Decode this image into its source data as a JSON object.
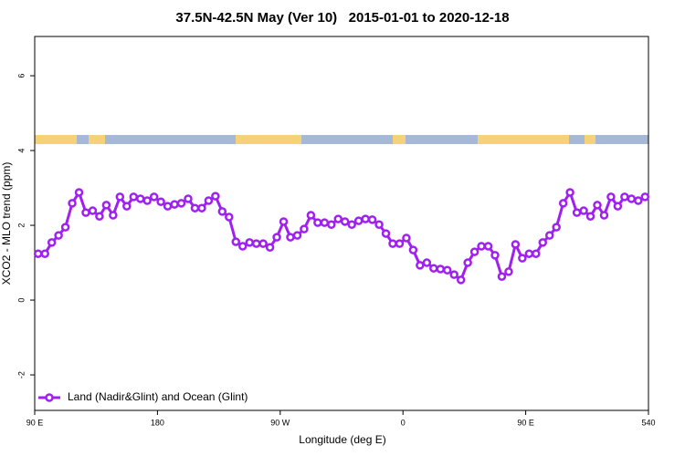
{
  "chart_data": {
    "type": "line",
    "title": "37.5N-42.5N May (Ver 10)   2015-01-01 to 2020-12-18",
    "x_label": "Longitude (deg E)",
    "y_label": "XCO2 - MLO trend (ppm)",
    "xlim": [
      90,
      540
    ],
    "ylim": [
      -2.95,
      7.05
    ],
    "xticks": [
      {
        "value": 90,
        "label": "90 E"
      },
      180,
      {
        "value": 270,
        "label": "90 W"
      },
      {
        "value": 360,
        "label": "0"
      },
      {
        "value": 450,
        "label": "90 E"
      },
      540
    ],
    "yticks": [
      -2,
      0,
      2,
      4,
      6
    ],
    "grid": false,
    "legend": "bottom-left",
    "x": [
      92.5,
      97.5,
      102.5,
      107.5,
      112.5,
      117.5,
      122.5,
      127.5,
      132.5,
      137.5,
      142.5,
      147.5,
      152.5,
      157.5,
      162.5,
      167.5,
      172.5,
      177.5,
      182.5,
      187.5,
      192.5,
      197.5,
      202.5,
      207.5,
      212.5,
      217.5,
      222.5,
      227.5,
      232.5,
      237.5,
      242.5,
      247.5,
      252.5,
      257.5,
      262.5,
      267.5,
      272.5,
      277.5,
      282.5,
      287.5,
      292.5,
      297.5,
      302.5,
      307.5,
      312.5,
      317.5,
      322.5,
      327.5,
      332.5,
      337.5,
      342.5,
      347.5,
      352.5,
      357.5,
      362.5,
      367.5,
      372.5,
      377.5,
      382.5,
      387.5,
      392.5,
      397.5,
      402.5,
      407.5,
      412.5,
      417.5,
      422.5,
      427.5,
      432.5,
      437.5,
      442.5,
      447.5,
      452.5,
      457.5,
      462.5,
      467.5,
      472.5,
      477.5,
      482.5,
      487.5,
      492.5,
      497.5,
      502.5,
      507.5,
      512.5,
      517.5,
      522.5,
      527.5,
      532.5,
      537.5
    ],
    "series": [
      {
        "name": "Land (Nadir&Glint) and Ocean (Glint)",
        "color": "#a020f0",
        "values": [
          1.24,
          1.24,
          1.54,
          1.73,
          1.95,
          2.59,
          2.88,
          2.34,
          2.39,
          2.24,
          2.54,
          2.27,
          2.76,
          2.51,
          2.76,
          2.71,
          2.66,
          2.76,
          2.63,
          2.51,
          2.56,
          2.59,
          2.71,
          2.46,
          2.46,
          2.66,
          2.78,
          2.37,
          2.22,
          1.56,
          1.44,
          1.54,
          1.51,
          1.51,
          1.41,
          1.68,
          2.1,
          1.68,
          1.73,
          1.9,
          2.27,
          2.07,
          2.07,
          2.02,
          2.17,
          2.1,
          2.02,
          2.12,
          2.17,
          2.15,
          2.02,
          1.78,
          1.51,
          1.51,
          1.66,
          1.34,
          0.93,
          1.0,
          0.85,
          0.83,
          0.8,
          0.68,
          0.54,
          1.0,
          1.29,
          1.44,
          1.44,
          1.2,
          0.63,
          0.76,
          1.49,
          1.12,
          1.24,
          1.24,
          1.54,
          1.73,
          1.95,
          2.59,
          2.88,
          2.34,
          2.39,
          2.24,
          2.54,
          2.27,
          2.76,
          2.51,
          2.76,
          2.71,
          2.66,
          2.76
        ]
      }
    ]
  }
}
